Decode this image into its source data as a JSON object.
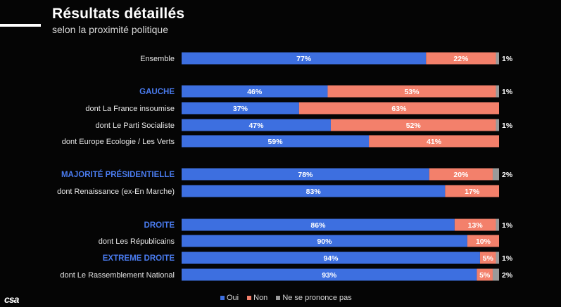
{
  "header": {
    "title": "Résultats détaillés",
    "subtitle": "selon la proximité politique"
  },
  "logo_text": "csa",
  "colors": {
    "oui": "#3d6fe0",
    "non": "#f3806b",
    "nsp": "#9a9a9a",
    "group_label": "#4a7cf0",
    "row_label": "#e6e6e6"
  },
  "chart_data": {
    "type": "bar",
    "orientation": "horizontal",
    "stacked": true,
    "legend_position": "bottom",
    "series": [
      {
        "name": "Oui",
        "values": [
          77,
          46,
          37,
          47,
          59,
          78,
          83,
          86,
          90,
          94,
          93
        ]
      },
      {
        "name": "Non",
        "values": [
          22,
          53,
          63,
          52,
          41,
          20,
          17,
          13,
          10,
          5,
          5
        ]
      },
      {
        "name": "Ne se prononce pas",
        "values": [
          1,
          1,
          0,
          1,
          0,
          2,
          0,
          1,
          0,
          1,
          2
        ]
      }
    ],
    "categories": [
      "Ensemble",
      "GAUCHE",
      "dont La France insoumise",
      "dont Le Parti Socialiste",
      "dont Europe Ecologie / Les Verts",
      "MAJORITÉ PRÉSIDENTIELLE",
      "dont Renaissance (ex-En Marche)",
      "DROITE",
      "dont  Les Républicains",
      "EXTREME DROITE",
      "dont Le Rassemblement National"
    ],
    "group_headers": [
      false,
      true,
      false,
      false,
      false,
      true,
      false,
      true,
      false,
      true,
      false
    ],
    "labels": {
      "oui": [
        "77%",
        "46%",
        "37%",
        "47%",
        "59%",
        "78%",
        "83%",
        "86%",
        "90%",
        "94%",
        "93%"
      ],
      "non": [
        "22%",
        "53%",
        "63%",
        "52%",
        "41%",
        "20%",
        "17%",
        "13%",
        "10%",
        "5%",
        "5%"
      ],
      "nsp": [
        "1%",
        "1%",
        "",
        "1%",
        "",
        "2%",
        "",
        "1%",
        "",
        "1%",
        "2%"
      ]
    },
    "xlim": [
      0,
      100
    ]
  }
}
